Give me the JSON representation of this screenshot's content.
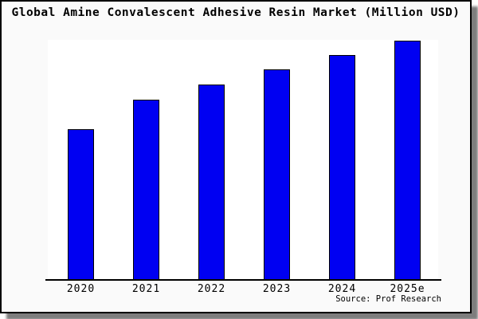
{
  "title": "Global Amine Convalescent Adhesive Resin Market (Million USD)",
  "source_note": "Source: Prof Research",
  "colors": {
    "card_background": "#fafafa",
    "plot_background": "#ffffff",
    "bar_fill": "#0000f2",
    "bar_border": "#000000",
    "frame_border": "#000000",
    "shadow": "#7d7d7d",
    "text": "#000000"
  },
  "chart_data": {
    "type": "bar",
    "title": "Global Amine Convalescent Adhesive Resin Market (Million USD)",
    "xlabel": "",
    "ylabel": "",
    "categories": [
      "2020",
      "2021",
      "2022",
      "2023",
      "2024",
      "2025e"
    ],
    "values_pct_of_max": [
      62.7,
      75.0,
      81.3,
      87.7,
      93.7,
      99.7
    ],
    "y_axis_note": "no y-axis ticks, labels, or gridlines shown; values estimated as percent of tallest bar (2025e = 100%)",
    "unit": "Million USD",
    "grid": false,
    "legend": "none",
    "bar_color": "#0000f2",
    "bar_border_color": "#000000",
    "source_note": "Source: Prof Research"
  }
}
